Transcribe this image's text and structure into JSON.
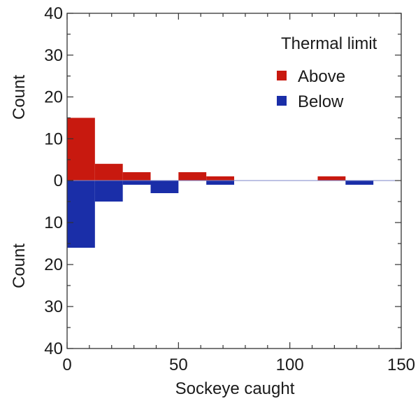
{
  "chart_data": {
    "type": "bar",
    "orientation": "back-to-back histogram",
    "title": "",
    "xlabel": "Sockeye caught",
    "ylabel_top": "Count",
    "ylabel_bottom": "Count",
    "xlim": [
      0,
      150
    ],
    "ylim_top": [
      0,
      40
    ],
    "ylim_bottom": [
      0,
      40
    ],
    "x_ticks": [
      0,
      50,
      100,
      150
    ],
    "x_tick_labels": [
      "0",
      "50",
      "100",
      "150"
    ],
    "y_ticks_top": [
      0,
      10,
      20,
      30,
      40
    ],
    "y_tick_labels_top": [
      "0",
      "10",
      "20",
      "30",
      "40"
    ],
    "y_ticks_bottom": [
      10,
      20,
      30,
      40
    ],
    "y_tick_labels_bottom": [
      "10",
      "20",
      "30",
      "40"
    ],
    "bin_width": 12.5,
    "bin_starts": [
      0,
      12.5,
      25,
      37.5,
      50,
      62.5,
      75,
      87.5,
      100,
      112.5,
      125
    ],
    "legend": {
      "title": "Thermal limit",
      "placement": "top-right"
    },
    "series": [
      {
        "name": "Above",
        "color": "#c8190f",
        "direction": "up",
        "values": [
          15,
          4,
          2,
          0,
          2,
          1,
          0,
          0,
          0,
          1,
          0
        ]
      },
      {
        "name": "Below",
        "color": "#1a2ea8",
        "direction": "down",
        "values": [
          16,
          5,
          1,
          3,
          0,
          1,
          0,
          0,
          0,
          0,
          1
        ]
      }
    ],
    "zero_line_color": "#7b86c9",
    "grid": false
  }
}
